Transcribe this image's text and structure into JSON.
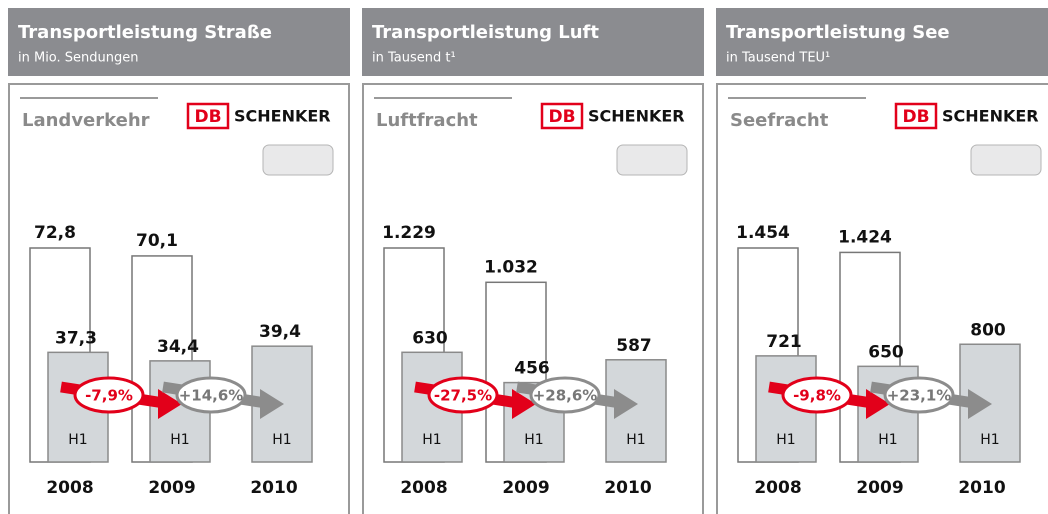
{
  "chart_data": [
    {
      "type": "bar",
      "title": "Transportleistung Straße",
      "subtitle": "in Mio. Sendungen",
      "label": "Landverkehr",
      "brand_mark": "DB",
      "brand": "SCHENKER",
      "categories": [
        "2008",
        "2009",
        "2010"
      ],
      "series": [
        {
          "values": [
            72.8,
            70.1,
            null
          ],
          "value_labels": [
            "72,8",
            "70,1",
            null
          ],
          "color": "#ffffff"
        },
        {
          "name": "H1",
          "values": [
            37.3,
            34.4,
            39.4
          ],
          "value_labels": [
            "37,3",
            "34,4",
            "39,4"
          ],
          "color": "#d3d7da"
        }
      ],
      "changes": {
        "values": [
          -7.9,
          14.6
        ],
        "value_labels": [
          "-7,9%",
          "+14,6%"
        ]
      },
      "change_colors": {
        "negative": "#e2001a",
        "positive": "#8c8c8c"
      }
    },
    {
      "type": "bar",
      "title": "Transportleistung Luft",
      "subtitle": "in Tausend t¹",
      "label": "Luftfracht",
      "brand_mark": "DB",
      "brand": "SCHENKER",
      "categories": [
        "2008",
        "2009",
        "2010"
      ],
      "series": [
        {
          "values": [
            1229,
            1032,
            null
          ],
          "value_labels": [
            "1.229",
            "1.032",
            null
          ],
          "color": "#ffffff"
        },
        {
          "name": "H1",
          "values": [
            630,
            456,
            587
          ],
          "color": "#d3d7da"
        }
      ],
      "changes": {
        "values": [
          -27.5,
          28.6
        ],
        "value_labels": [
          "-27,5%",
          "+28,6%"
        ]
      },
      "change_colors": {
        "negative": "#e2001a",
        "positive": "#8c8c8c"
      }
    },
    {
      "type": "bar",
      "title": "Transportleistung See",
      "subtitle": "in Tausend TEU¹",
      "label": "Seefracht",
      "brand_mark": "DB",
      "brand": "SCHENKER",
      "categories": [
        "2008",
        "2009",
        "2010"
      ],
      "series": [
        {
          "values": [
            1454,
            1424,
            null
          ],
          "value_labels": [
            "1.454",
            "1.424",
            null
          ],
          "color": "#ffffff"
        },
        {
          "name": "H1",
          "values": [
            721,
            650,
            800
          ],
          "color": "#d3d7da"
        }
      ],
      "changes": {
        "values": [
          -9.8,
          23.1
        ],
        "value_labels": [
          "-9,8%",
          "+23,1%"
        ]
      },
      "change_colors": {
        "negative": "#e2001a",
        "positive": "#8c8c8c"
      }
    }
  ]
}
